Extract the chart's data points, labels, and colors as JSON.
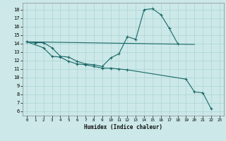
{
  "xlabel": "Humidex (Indice chaleur)",
  "bg_color": "#cce8e8",
  "grid_color": "#aad4d4",
  "line_color": "#1a6868",
  "xlim": [
    -0.5,
    23.5
  ],
  "ylim": [
    5.5,
    18.8
  ],
  "yticks": [
    6,
    7,
    8,
    9,
    10,
    11,
    12,
    13,
    14,
    15,
    16,
    17,
    18
  ],
  "xticks": [
    0,
    1,
    2,
    3,
    4,
    5,
    6,
    7,
    8,
    9,
    10,
    11,
    12,
    13,
    14,
    15,
    16,
    17,
    18,
    19,
    20,
    21,
    22,
    23
  ],
  "line_peak": {
    "x": [
      0,
      1,
      2,
      3,
      4,
      5,
      6,
      7,
      8,
      9,
      10,
      11,
      12,
      13,
      14,
      15,
      16,
      17,
      18
    ],
    "y": [
      14.2,
      14.1,
      14.1,
      13.5,
      12.5,
      12.4,
      11.9,
      11.6,
      11.5,
      11.3,
      12.3,
      12.8,
      14.8,
      14.5,
      18.0,
      18.1,
      17.4,
      15.8,
      14.0
    ]
  },
  "line_flat": {
    "x": [
      0,
      20
    ],
    "y": [
      14.2,
      13.9
    ]
  },
  "line_desc": {
    "x": [
      0,
      2,
      3,
      4,
      5,
      6,
      7,
      8,
      9,
      10,
      11,
      12,
      19,
      20,
      21,
      22
    ],
    "y": [
      14.2,
      13.5,
      12.5,
      12.4,
      11.9,
      11.6,
      11.5,
      11.3,
      11.1,
      11.1,
      11.0,
      10.9,
      9.8,
      8.3,
      8.2,
      6.3
    ]
  }
}
